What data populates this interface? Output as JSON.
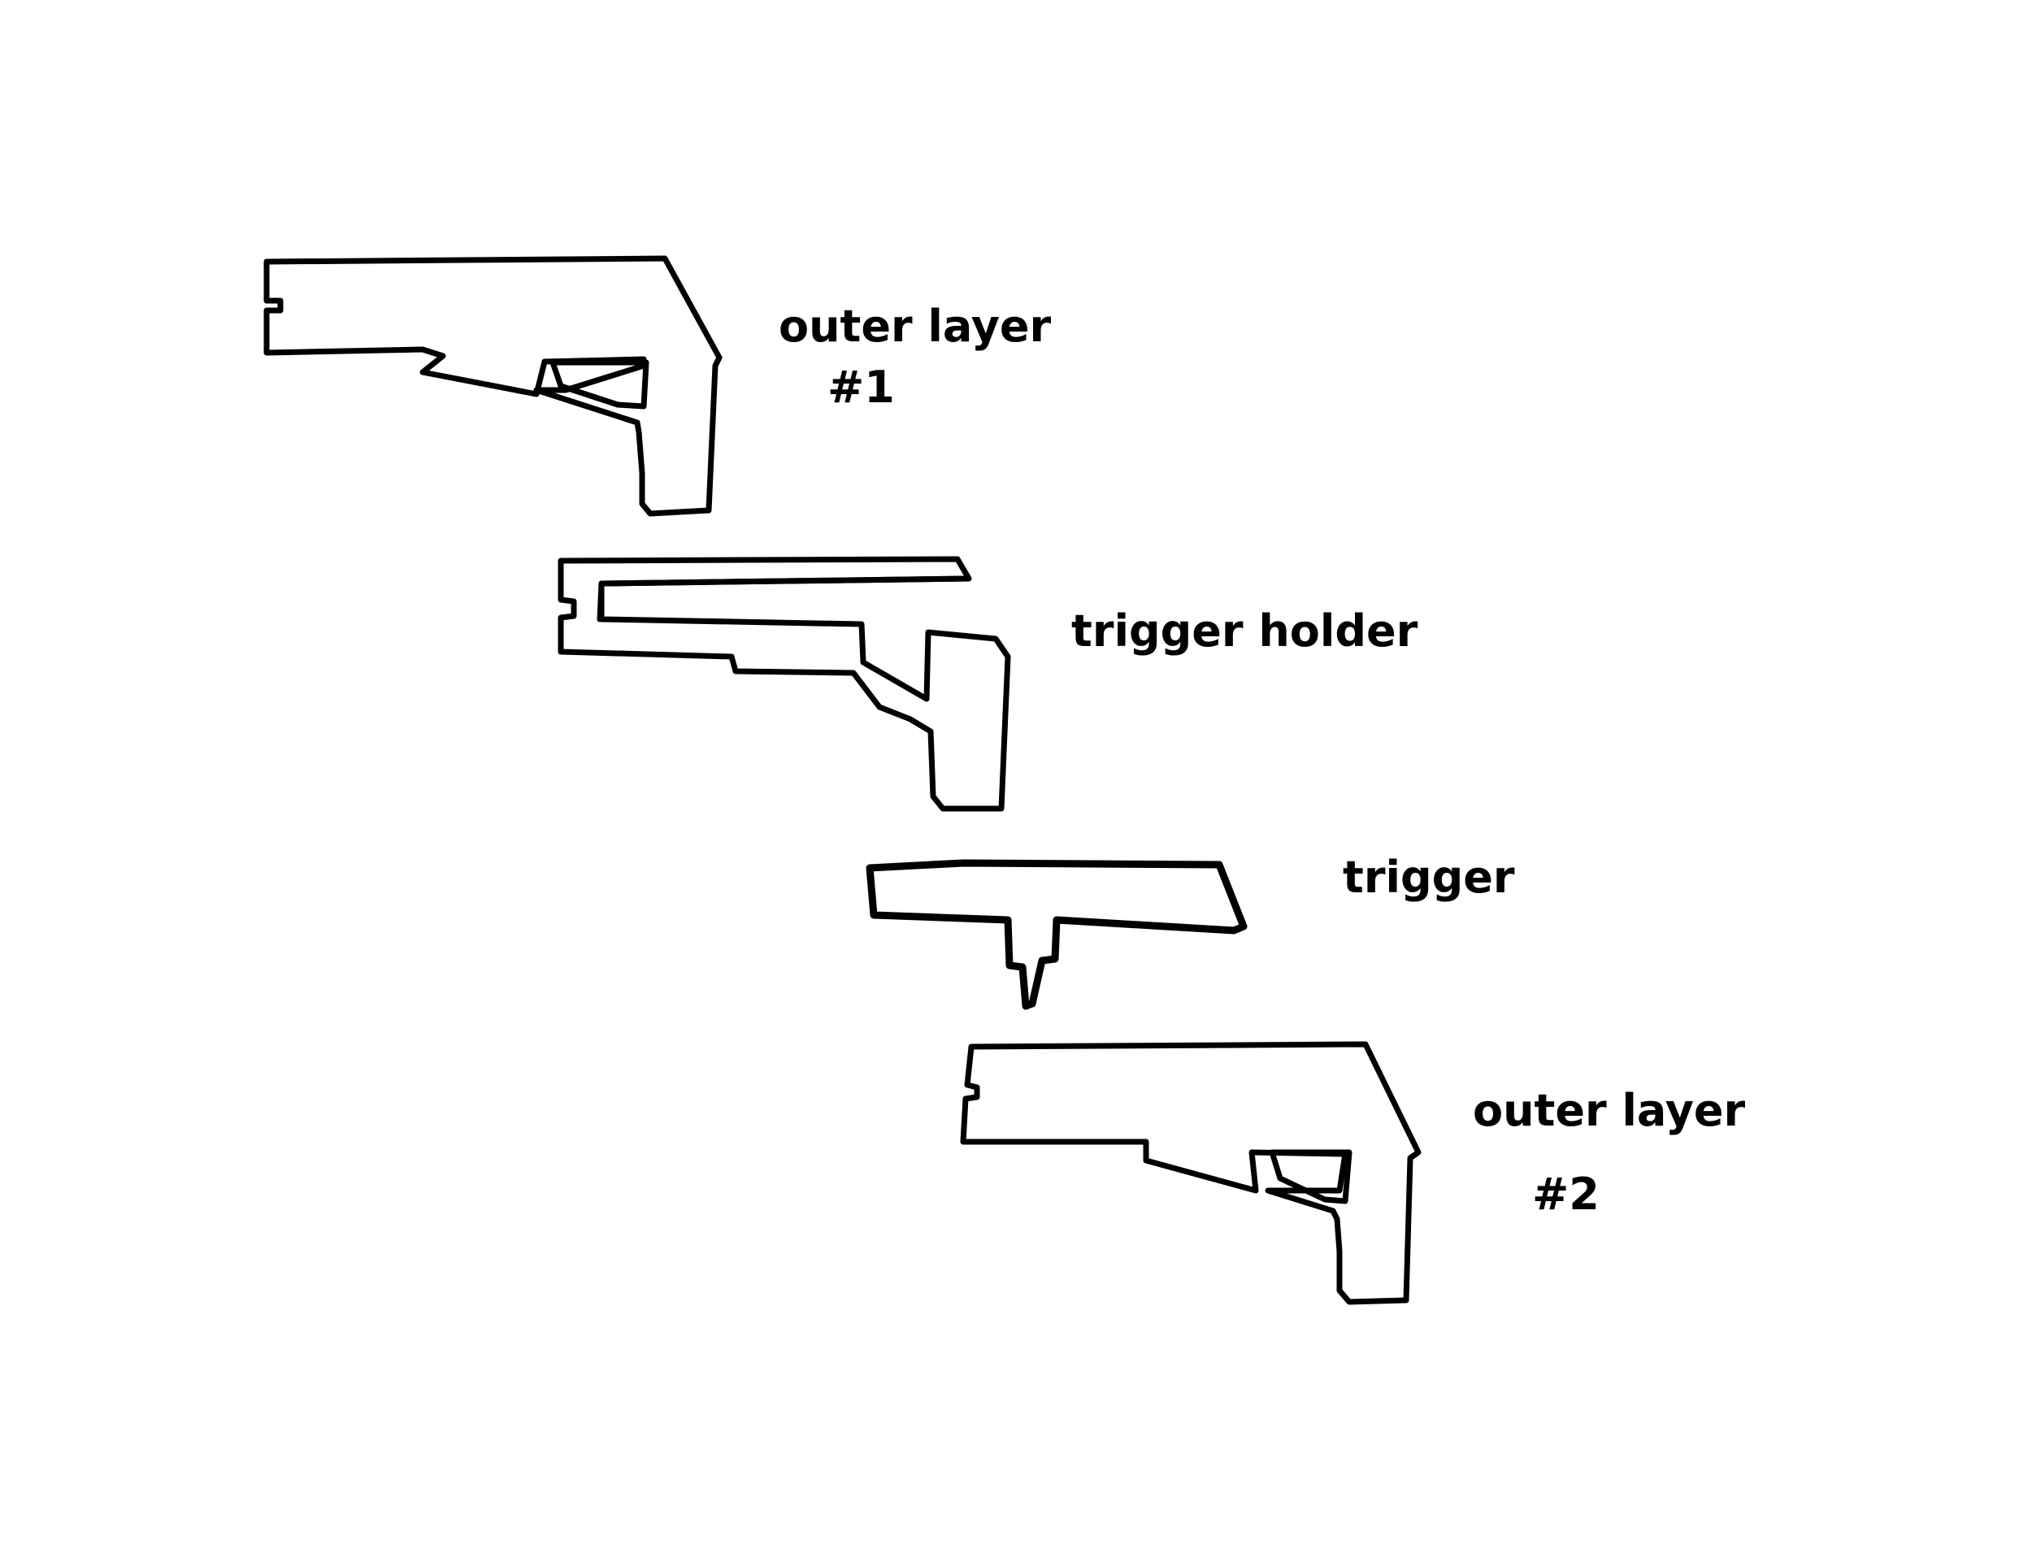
{
  "diagram": {
    "parts": [
      {
        "id": "outer-layer-1",
        "label_line1": "outer layer",
        "label_line2": "#1"
      },
      {
        "id": "trigger-holder",
        "label_line1": "trigger holder"
      },
      {
        "id": "trigger",
        "label_line1": "trigger"
      },
      {
        "id": "outer-layer-2",
        "label_line1": "outer layer",
        "label_line2": "#2"
      }
    ]
  },
  "colors": {
    "stroke": "#000000",
    "background": "#ffffff"
  }
}
